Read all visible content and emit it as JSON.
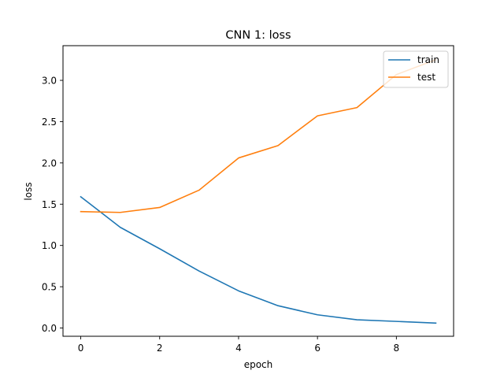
{
  "chart_data": {
    "type": "line",
    "title": "CNN 1: loss",
    "xlabel": "epoch",
    "ylabel": "loss",
    "x": [
      0,
      1,
      2,
      3,
      4,
      5,
      6,
      7,
      8,
      9
    ],
    "xlim": [
      -0.45,
      9.45
    ],
    "ylim": [
      -0.1,
      3.42
    ],
    "xticks": [
      0,
      2,
      4,
      6,
      8
    ],
    "yticks": [
      0.0,
      0.5,
      1.0,
      1.5,
      2.0,
      2.5,
      3.0
    ],
    "xtick_labels": [
      "0",
      "2",
      "4",
      "6",
      "8"
    ],
    "ytick_labels": [
      "0.0",
      "0.5",
      "1.0",
      "1.5",
      "2.0",
      "2.5",
      "3.0"
    ],
    "grid": false,
    "legend_position": "top-right",
    "series": [
      {
        "name": "train",
        "color": "#1f77b4",
        "values": [
          1.59,
          1.22,
          0.96,
          0.69,
          0.45,
          0.27,
          0.16,
          0.1,
          0.08,
          0.06
        ]
      },
      {
        "name": "test",
        "color": "#ff7f0e",
        "values": [
          1.41,
          1.4,
          1.46,
          1.67,
          2.06,
          2.21,
          2.57,
          2.67,
          3.07,
          3.25
        ]
      }
    ]
  }
}
